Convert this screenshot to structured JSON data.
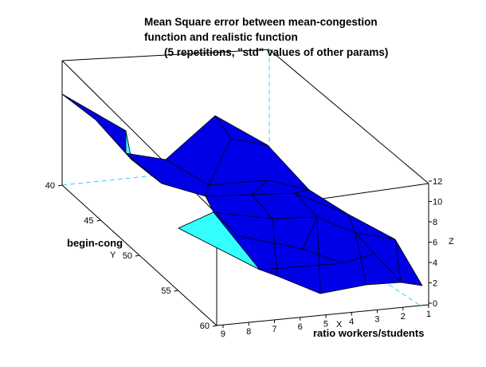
{
  "title_lines": [
    "Mean Square error between mean-congestion",
    "function and realistic function",
    "(5 repetitions, \"std\" values of other params)"
  ],
  "chart_data": {
    "type": "surface3d",
    "title": "Mean Square error between mean-congestion function and realistic function (5 repetitions, \"std\" values of other params)",
    "xlabel": "ratio workers/students",
    "ylabel": "begin-cong",
    "zlabel": "",
    "axis_letters": {
      "x": "X",
      "y": "Y",
      "z": "Z"
    },
    "x_ticks": [
      1,
      2,
      3,
      4,
      5,
      6,
      7,
      8,
      9
    ],
    "y_ticks": [
      40,
      45,
      50,
      55,
      60
    ],
    "z_ticks": [
      0,
      2,
      4,
      6,
      8,
      10,
      12
    ],
    "xlim": [
      1,
      9
    ],
    "ylim": [
      40,
      60
    ],
    "zlim": [
      0,
      12
    ],
    "surface_color": "#0000e6",
    "surface_back_color": "#33ffff",
    "edge_color": "#000000",
    "guide_color": "#33ccff"
  }
}
